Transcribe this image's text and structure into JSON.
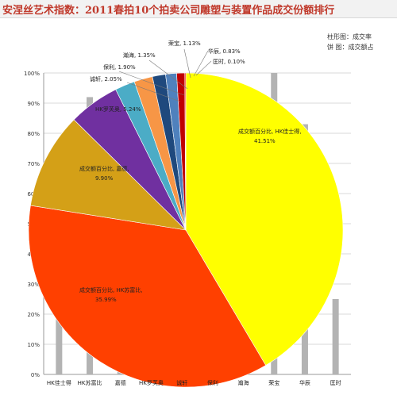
{
  "title": "安涅丝艺术指数：2011春拍10个拍卖公司雕塑与装置作品成交份额排行",
  "legend": [
    "柱形图：成交率",
    "饼  图：成交额占"
  ],
  "chart_data": [
    {
      "type": "bar",
      "title": "",
      "ylim": [
        0,
        100
      ],
      "yticks": [
        "0%",
        "10%",
        "20%",
        "30%",
        "40%",
        "50%",
        "60%",
        "70%",
        "80%",
        "90%",
        "100%"
      ],
      "categories": [
        "HK佳士得",
        "HK苏富比",
        "嘉德",
        "HK罗芙奥",
        "诚轩",
        "保利",
        "瀚海",
        "荣宝",
        "华辰",
        "匡时"
      ],
      "x_tick_labels": [
        "HK佳士得",
        "HK苏富比",
        "嘉德",
        "HK罗芙奥",
        "诚轩",
        "保利",
        "瀚海",
        "荣宝",
        "华辰",
        "匡时"
      ],
      "values": [
        72,
        92,
        72,
        91,
        73,
        73,
        72,
        100,
        83,
        25
      ],
      "bar_color": "#b3b3b3",
      "grid": true
    },
    {
      "type": "pie",
      "slices": [
        {
          "label": "成交额百分比, HK佳士得, 41.51%",
          "value": 41.51,
          "color": "#ffff00"
        },
        {
          "label": "成交额百分比, HK苏富比, 35.99%",
          "value": 35.99,
          "color": "#ff4000"
        },
        {
          "label": "成交额百分比, 嘉德, 9.90%",
          "value": 9.9,
          "color": "#d4a017"
        },
        {
          "label": "HK罗芙奥, 5.24%",
          "value": 5.24,
          "color": "#7030a0"
        },
        {
          "label": "诚轩, 2.05%",
          "value": 2.05,
          "color": "#4bacc6"
        },
        {
          "label": "保利, 1.90%",
          "value": 1.9,
          "color": "#f79646"
        },
        {
          "label": "瀚海, 1.35%",
          "value": 1.35,
          "color": "#1f497d"
        },
        {
          "label": "荣宝, 1.13%",
          "value": 1.13,
          "color": "#4f81bd"
        },
        {
          "label": "华辰, 0.83%",
          "value": 0.83,
          "color": "#c00000"
        },
        {
          "label": "匡时, 0.10%",
          "value": 0.1,
          "color": "#ff0000"
        }
      ]
    }
  ]
}
